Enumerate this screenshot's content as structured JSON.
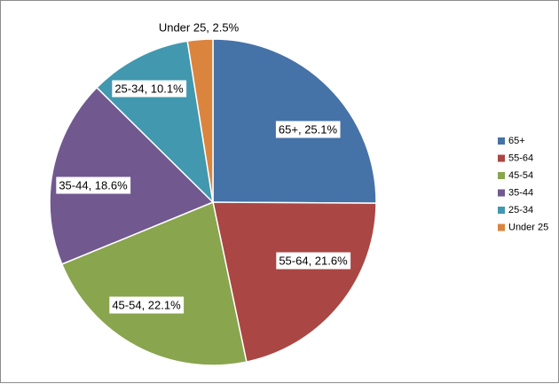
{
  "chart_data": {
    "type": "pie",
    "title": "",
    "start_angle_deg": 0,
    "direction": "clockwise",
    "legend_position": "right",
    "slices": [
      {
        "name": "65+",
        "value": 25.1,
        "label": "65+, 25.1%",
        "color": "#4572A7"
      },
      {
        "name": "55-64",
        "value": 21.6,
        "label": "55-64, 21.6%",
        "color": "#AA4643"
      },
      {
        "name": "45-54",
        "value": 22.1,
        "label": "45-54, 22.1%",
        "color": "#89A54E"
      },
      {
        "name": "35-44",
        "value": 18.6,
        "label": "35-44, 18.6%",
        "color": "#71588F"
      },
      {
        "name": "25-34",
        "value": 10.1,
        "label": "25-34, 10.1%",
        "color": "#4198AF"
      },
      {
        "name": "Under 25",
        "value": 2.5,
        "label": "Under 25, 2.5%",
        "color": "#DB843D"
      }
    ]
  }
}
